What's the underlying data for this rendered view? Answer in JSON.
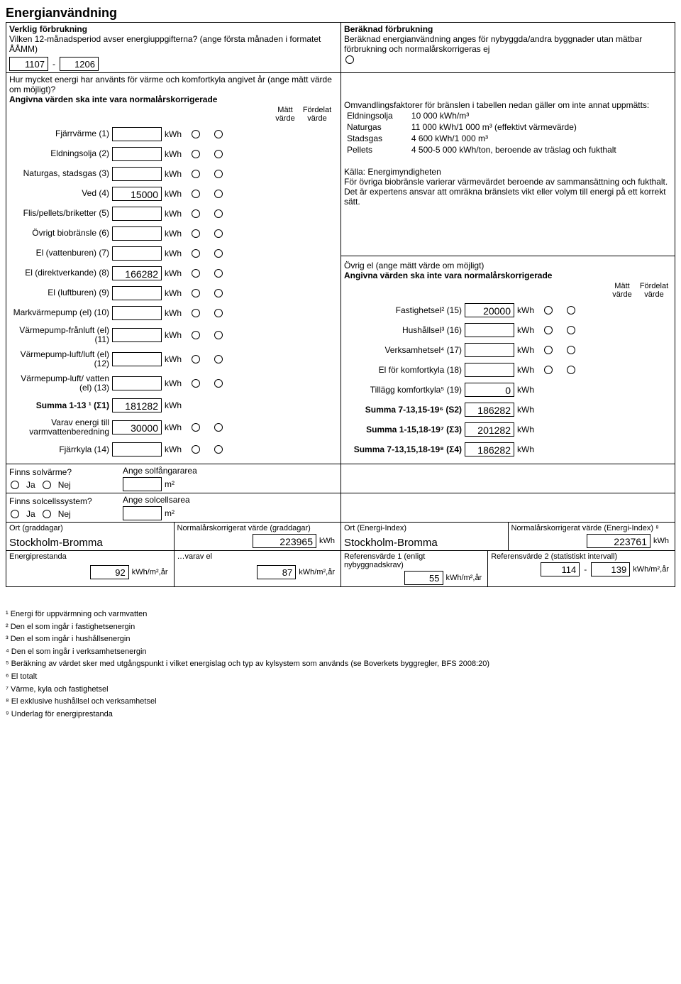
{
  "title": "Energianvändning",
  "actual": {
    "heading": "Verklig förbrukning",
    "period_q": "Vilken 12-månadsperiod avser energiuppgifterna? (ange första månaden i formatet ÅÅMM)",
    "period_from": "1107",
    "period_to": "1206",
    "usage_q": "Hur mycket energi har använts för värme och komfortkyla angivet år (ange mätt värde om möjligt)?",
    "norm_note": "Angivna värden ska inte vara normalårskorrigerade",
    "col_matt": "Mätt värde",
    "col_ford": "Fördelat värde",
    "rows": [
      {
        "label": "Fjärrvärme (1)",
        "value": "",
        "unit": "kWh"
      },
      {
        "label": "Eldningsolja (2)",
        "value": "",
        "unit": "kWh"
      },
      {
        "label": "Naturgas, stadsgas (3)",
        "value": "",
        "unit": "kWh"
      },
      {
        "label": "Ved (4)",
        "value": "15000",
        "unit": "kWh"
      },
      {
        "label": "Flis/pellets/briketter (5)",
        "value": "",
        "unit": "kWh"
      },
      {
        "label": "Övrigt biobränsle (6)",
        "value": "",
        "unit": "kWh"
      },
      {
        "label": "El (vattenburen) (7)",
        "value": "",
        "unit": "kWh"
      },
      {
        "label": "El (direktverkande) (8)",
        "value": "166282",
        "unit": "kWh"
      },
      {
        "label": "El (luftburen) (9)",
        "value": "",
        "unit": "kWh"
      },
      {
        "label": "Markvärmepump (el) (10)",
        "value": "",
        "unit": "kWh"
      },
      {
        "label": "Värmepump-frånluft (el) (11)",
        "value": "",
        "unit": "kWh"
      },
      {
        "label": "Värmepump-luft/luft (el) (12)",
        "value": "",
        "unit": "kWh"
      },
      {
        "label": "Värmepump-luft/ vatten (el) (13)",
        "value": "",
        "unit": "kWh"
      }
    ],
    "sum113_label": "Summa 1-13 ¹ (Σ1)",
    "sum113_value": "181282",
    "varav_label": "Varav energi till varmvattenberedning",
    "varav_value": "30000",
    "fjarrkyla_label": "Fjärrkyla (14)",
    "fjarrkyla_value": ""
  },
  "calc": {
    "heading": "Beräknad förbrukning",
    "text": "Beräknad energianvändning anges för nybyggda/andra byggnader utan mätbar förbrukning och normalårskorrigeras ej",
    "conv_intro": "Omvandlingsfaktorer för bränslen i tabellen nedan gäller om inte annat uppmätts:",
    "conv": [
      {
        "k": "Eldningsolja",
        "v": "10 000 kWh/m³"
      },
      {
        "k": "Naturgas",
        "v": "11 000 kWh/1 000 m³ (effektivt värmevärde)"
      },
      {
        "k": "Stadsgas",
        "v": "4 600 kWh/1 000 m³"
      },
      {
        "k": "Pellets",
        "v": "4 500-5 000 kWh/ton, beroende av träslag och fukthalt"
      }
    ],
    "source": "Källa: Energimyndigheten",
    "note2": "För övriga biobränsle varierar värmevärdet beroende av sammansättning och fukthalt. Det är expertens ansvar att omräkna bränslets vikt eller volym till energi på ett korrekt sätt."
  },
  "ovrig": {
    "heading": "Övrig el (ange mätt värde om möjligt)",
    "norm_note": "Angivna värden ska inte vara normalårskorrigerade",
    "col_matt": "Mätt värde",
    "col_ford": "Fördelat värde",
    "rows": [
      {
        "label": "Fastighetsel² (15)",
        "value": "20000",
        "unit": "kWh"
      },
      {
        "label": "Hushållsel³ (16)",
        "value": "",
        "unit": "kWh"
      },
      {
        "label": "Verksamhetsel⁴ (17)",
        "value": "",
        "unit": "kWh"
      },
      {
        "label": "El för komfortkyla (18)",
        "value": "",
        "unit": "kWh"
      }
    ],
    "tillagg_label": "Tillägg komfortkyla⁵ (19)",
    "tillagg_value": "0",
    "s2_label": "Summa 7-13,15-19⁶ (S2)",
    "s2_value": "186282",
    "s3_label": "Summa 1-15,18-19⁷ (Σ3)",
    "s3_value": "201282",
    "s4_label": "Summa 7-13,15,18-19⁸ (Σ4)",
    "s4_value": "186282"
  },
  "solar": {
    "q1": "Finns solvärme?",
    "q2": "Finns solcellssystem?",
    "ja": "Ja",
    "nej": "Nej",
    "a1": "Ange solfångararea",
    "a2": "Ange solcellsarea",
    "unit": "m²"
  },
  "ort": {
    "l1": "Ort (graddagar)",
    "l2": "Normalårskorrigerat värde (graddagar)",
    "l3": "Ort (Energi-Index)",
    "l4": "Normalårskorrigerat värde (Energi-Index) ⁸",
    "ort1": "Stockholm-Bromma",
    "v1": "223965",
    "ort2": "Stockholm-Bromma",
    "v2": "223761",
    "unit": "kWh"
  },
  "perf": {
    "l1": "Energiprestanda",
    "l2": "…varav el",
    "l3": "Referensvärde 1 (enligt nybyggnadskrav)",
    "l4": "Referensvärde 2 (statistiskt intervall)",
    "v1": "92",
    "v2": "87",
    "v3": "55",
    "v4a": "114",
    "v4b": "139",
    "unit": "kWh/m²,år"
  },
  "footnotes": [
    "¹ Energi för uppvärmning och varmvatten",
    "² Den el som ingår i fastighetsenergin",
    "³ Den el som ingår i hushållsenergin",
    "⁴ Den el som ingår i verksamhetsenergin",
    "⁵ Beräkning av värdet sker med utgångspunkt i vilket energislag och typ av kylsystem som används (se Boverkets byggregler, BFS 2008:20)",
    "⁶ El totalt",
    "⁷ Värme, kyla och fastighetsel",
    "⁸ El exklusive hushållsel och verksamhetsel",
    "⁹ Underlag för energiprestanda"
  ]
}
